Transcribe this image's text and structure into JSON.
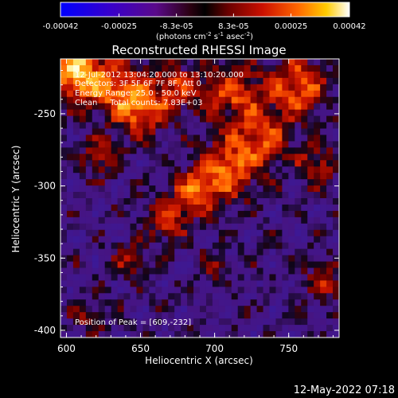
{
  "colorbar": {
    "tick_labels": [
      "-0.00042",
      "-0.00025",
      "-8.3e-05",
      "8.3e-05",
      "0.00025",
      "0.00042"
    ],
    "tick_values": [
      -0.00042,
      -0.00025,
      -8.3e-05,
      8.3e-05,
      0.00025,
      0.00042
    ],
    "units_label": "(photons cm",
    "units_exp1": "-2",
    "units_mid": " s",
    "units_exp2": "-1",
    "units_mid2": " asec",
    "units_exp3": "-2",
    "units_end": ")"
  },
  "plot": {
    "title": "Reconstructed RHESSI Image",
    "x_axis_label": "Heliocentric X (arcsec)",
    "y_axis_label": "Heliocentric Y (arcsec)",
    "x_tick_labels": [
      "600",
      "650",
      "700",
      "750"
    ],
    "x_tick_values": [
      600,
      650,
      700,
      750
    ],
    "y_tick_labels": [
      "-250",
      "-300",
      "-350",
      "-400"
    ],
    "y_tick_values": [
      -250,
      -300,
      -350,
      -400
    ],
    "x_range": [
      596,
      784
    ],
    "y_range": [
      -405,
      -212
    ],
    "info_lines": [
      "12-Jul-2012 13:04:20.000 to 13:10:20.000",
      "Detectors: 3F 5F 6F 7F 8F, Att 0",
      "Energy Range: 25.0 - 50.0 keV",
      "Clean     Total counts: 7.83E+03"
    ],
    "peak_label": "Position of Peak = [609,-232]",
    "peak_position": [
      609,
      -232
    ]
  },
  "footer": {
    "timestamp": "12-May-2022 07:18"
  }
}
